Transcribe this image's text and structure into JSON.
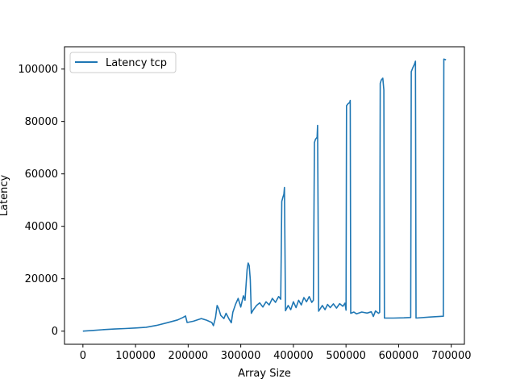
{
  "chart_data": {
    "type": "line",
    "xlabel": "Array Size",
    "ylabel": "Latency",
    "xlim": [
      -35000,
      725000
    ],
    "ylim": [
      -5000,
      108500
    ],
    "xticks": [
      0,
      100000,
      200000,
      300000,
      400000,
      500000,
      600000,
      700000
    ],
    "xtick_labels": [
      "0",
      "100000",
      "200000",
      "300000",
      "400000",
      "500000",
      "600000",
      "700000"
    ],
    "yticks": [
      0,
      20000,
      40000,
      60000,
      80000,
      100000
    ],
    "ytick_labels": [
      "0",
      "20000",
      "40000",
      "60000",
      "80000",
      "100000"
    ],
    "grid": false,
    "legend_position": "top-left",
    "series": [
      {
        "name": "Latency tcp",
        "color": "#1f77b4",
        "points": [
          [
            0,
            0
          ],
          [
            20000,
            300
          ],
          [
            40000,
            600
          ],
          [
            60000,
            800
          ],
          [
            80000,
            1000
          ],
          [
            100000,
            1200
          ],
          [
            120000,
            1500
          ],
          [
            140000,
            2200
          ],
          [
            160000,
            3200
          ],
          [
            180000,
            4300
          ],
          [
            190000,
            5200
          ],
          [
            195000,
            5800
          ],
          [
            198000,
            3300
          ],
          [
            210000,
            3800
          ],
          [
            225000,
            4800
          ],
          [
            235000,
            4200
          ],
          [
            245000,
            3300
          ],
          [
            248000,
            2100
          ],
          [
            252000,
            5200
          ],
          [
            255000,
            9800
          ],
          [
            258000,
            8600
          ],
          [
            262000,
            6000
          ],
          [
            268000,
            4800
          ],
          [
            272000,
            6800
          ],
          [
            278000,
            4500
          ],
          [
            282000,
            3200
          ],
          [
            285000,
            7200
          ],
          [
            290000,
            10200
          ],
          [
            295000,
            12500
          ],
          [
            300000,
            9200
          ],
          [
            305000,
            13500
          ],
          [
            308000,
            11800
          ],
          [
            312000,
            23500
          ],
          [
            314000,
            26000
          ],
          [
            316000,
            25000
          ],
          [
            318000,
            19800
          ],
          [
            320000,
            6800
          ],
          [
            324000,
            8200
          ],
          [
            330000,
            9800
          ],
          [
            336000,
            10800
          ],
          [
            342000,
            9200
          ],
          [
            348000,
            11200
          ],
          [
            354000,
            10000
          ],
          [
            360000,
            12500
          ],
          [
            366000,
            11000
          ],
          [
            372000,
            13200
          ],
          [
            376000,
            12200
          ],
          [
            378000,
            49500
          ],
          [
            380000,
            51000
          ],
          [
            382000,
            52200
          ],
          [
            383000,
            54800
          ],
          [
            385000,
            7800
          ],
          [
            390000,
            9800
          ],
          [
            395000,
            8200
          ],
          [
            400000,
            11200
          ],
          [
            405000,
            9000
          ],
          [
            410000,
            11800
          ],
          [
            415000,
            10000
          ],
          [
            420000,
            12800
          ],
          [
            425000,
            11200
          ],
          [
            430000,
            13200
          ],
          [
            435000,
            11000
          ],
          [
            438000,
            11800
          ],
          [
            440000,
            72000
          ],
          [
            442000,
            73200
          ],
          [
            445000,
            74000
          ],
          [
            446000,
            78500
          ],
          [
            448000,
            7600
          ],
          [
            455000,
            9800
          ],
          [
            460000,
            8200
          ],
          [
            465000,
            10200
          ],
          [
            470000,
            9000
          ],
          [
            476000,
            10400
          ],
          [
            482000,
            8800
          ],
          [
            488000,
            10500
          ],
          [
            494000,
            9500
          ],
          [
            498000,
            10700
          ],
          [
            500000,
            8000
          ],
          [
            501000,
            86000
          ],
          [
            504000,
            86800
          ],
          [
            507000,
            87200
          ],
          [
            508000,
            88000
          ],
          [
            509000,
            6800
          ],
          [
            515000,
            7300
          ],
          [
            520000,
            6600
          ],
          [
            530000,
            7300
          ],
          [
            540000,
            6900
          ],
          [
            548000,
            7400
          ],
          [
            552000,
            5600
          ],
          [
            556000,
            7700
          ],
          [
            562000,
            6800
          ],
          [
            564000,
            7200
          ],
          [
            565000,
            94500
          ],
          [
            567000,
            95800
          ],
          [
            570000,
            96500
          ],
          [
            572000,
            92000
          ],
          [
            573000,
            5000
          ],
          [
            590000,
            5000
          ],
          [
            610000,
            5100
          ],
          [
            623000,
            5200
          ],
          [
            624000,
            99000
          ],
          [
            627000,
            100500
          ],
          [
            630000,
            101800
          ],
          [
            632000,
            103000
          ],
          [
            633000,
            5000
          ],
          [
            660000,
            5400
          ],
          [
            685000,
            5700
          ],
          [
            686000,
            103800
          ],
          [
            690000,
            103500
          ]
        ]
      }
    ]
  }
}
